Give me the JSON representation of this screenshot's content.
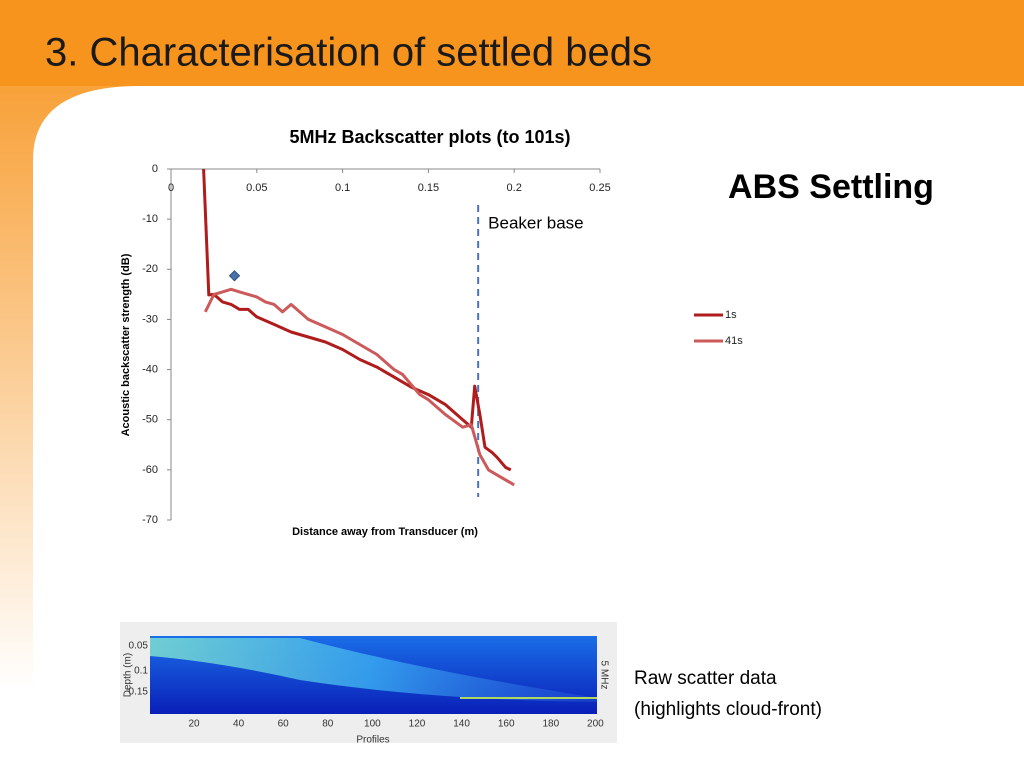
{
  "slide": {
    "title": "3. Characterisation of settled beds",
    "heading": "ABS Settling",
    "caption": [
      "Raw scatter data",
      "(highlights cloud-front)"
    ]
  },
  "chart_data": {
    "type": "line",
    "title": "5MHz Backscatter plots (to 101s)",
    "x_label": "Distance away from Transducer (m)",
    "y_label": "Acoustic backscatter strength (dB)",
    "xlim": [
      0,
      0.25
    ],
    "xticks": [
      0,
      0.05,
      0.1,
      0.15,
      0.2,
      0.25
    ],
    "ylim": [
      -70,
      0
    ],
    "yticks": [
      0,
      -10,
      -20,
      -30,
      -40,
      -50,
      -60,
      -70
    ],
    "legend": "right",
    "series": [
      {
        "name": "1s",
        "color": "#b01c1c",
        "x": [
          0.019,
          0.022,
          0.025,
          0.03,
          0.035,
          0.04,
          0.045,
          0.05,
          0.06,
          0.07,
          0.08,
          0.09,
          0.1,
          0.11,
          0.12,
          0.13,
          0.14,
          0.15,
          0.16,
          0.17,
          0.175,
          0.177,
          0.18,
          0.183,
          0.187,
          0.19,
          0.195,
          0.198
        ],
        "values": [
          0,
          -25.1,
          -25,
          -26.5,
          -27,
          -28,
          -28,
          -29.5,
          -31,
          -32.5,
          -33.5,
          -34.5,
          -36,
          -38,
          -39.5,
          -41.5,
          -43.5,
          -45,
          -47,
          -50,
          -51.5,
          -43.3,
          -49,
          -55.5,
          -56.5,
          -57.5,
          -59.5,
          -60
        ]
      },
      {
        "name": "41s",
        "color": "#cc5a5a",
        "x": [
          0.02,
          0.025,
          0.03,
          0.035,
          0.04,
          0.045,
          0.05,
          0.055,
          0.06,
          0.065,
          0.07,
          0.08,
          0.09,
          0.1,
          0.11,
          0.12,
          0.13,
          0.135,
          0.14,
          0.145,
          0.15,
          0.16,
          0.17,
          0.175,
          0.18,
          0.185,
          0.19,
          0.195,
          0.2
        ],
        "values": [
          -28.5,
          -25,
          -24.5,
          -24,
          -24.5,
          -25,
          -25.5,
          -26.5,
          -27,
          -28.5,
          -27,
          -30,
          -31.5,
          -33,
          -35,
          -37,
          -40,
          -41,
          -43,
          -45,
          -46,
          -49,
          -51.5,
          -51,
          -57,
          -60,
          -61,
          -62,
          -63
        ]
      }
    ],
    "point": {
      "x": 0.037,
      "y": -21.3,
      "color": "#4a72a8"
    },
    "annotation": {
      "text": "Beaker base",
      "x": 0.179,
      "color": "#4a72c4"
    }
  },
  "image": {
    "y_label": "Depth (m)",
    "x_label": "Profiles",
    "side_label": "5 MHz",
    "yticks": [
      "0.05",
      "0.1",
      "0.15"
    ],
    "xticks": [
      20,
      40,
      60,
      80,
      100,
      120,
      140,
      160,
      180,
      200
    ]
  }
}
